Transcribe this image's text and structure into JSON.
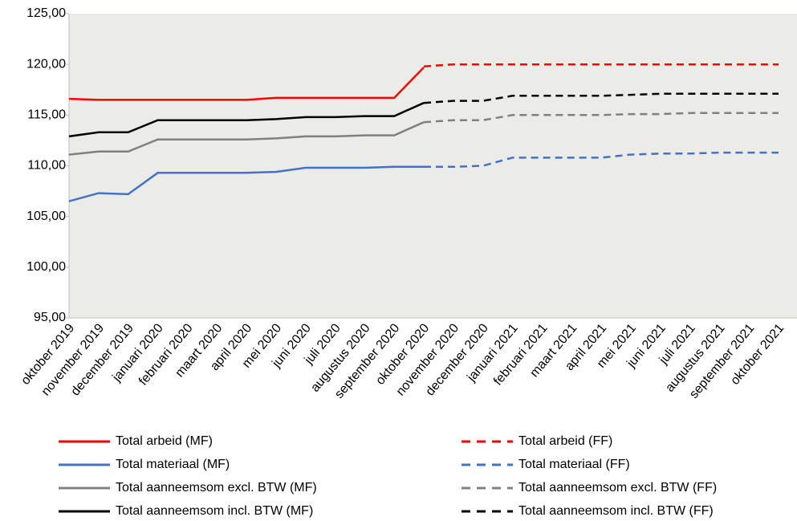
{
  "chart_data": {
    "type": "line",
    "categories": [
      "oktober 2019",
      "november 2019",
      "december 2019",
      "januari 2020",
      "februari 2020",
      "maart 2020",
      "april 2020",
      "mei 2020",
      "juni 2020",
      "juli 2020",
      "augustus 2020",
      "september 2020",
      "oktober 2020",
      "november 2020",
      "december 2020",
      "januari 2021",
      "februari 2021",
      "maart 2021",
      "april 2021",
      "mei 2021",
      "juni 2021",
      "juli 2021",
      "augustus 2021",
      "september 2021",
      "oktober 2021"
    ],
    "series": [
      {
        "name": "Total arbeid (MF)",
        "color": "#ff0000",
        "style": "solid",
        "values": [
          116.6,
          116.5,
          116.5,
          116.5,
          116.5,
          116.5,
          116.5,
          116.7,
          116.7,
          116.7,
          116.7,
          116.7,
          119.7,
          null,
          null,
          null,
          null,
          null,
          null,
          null,
          null,
          null,
          null,
          null,
          null
        ]
      },
      {
        "name": "Total arbeid (FF)",
        "color": "#ff0000",
        "style": "dashed",
        "values": [
          null,
          null,
          null,
          null,
          null,
          null,
          null,
          null,
          null,
          null,
          null,
          null,
          119.8,
          120.0,
          120.0,
          120.0,
          120.0,
          120.0,
          120.0,
          120.0,
          120.0,
          120.0,
          120.0,
          120.0,
          120.0
        ]
      },
      {
        "name": "Total materiaal (MF)",
        "color": "#4472c4",
        "style": "solid",
        "values": [
          106.5,
          107.3,
          107.2,
          109.3,
          109.3,
          109.3,
          109.3,
          109.4,
          109.8,
          109.8,
          109.8,
          109.9,
          109.9,
          null,
          null,
          null,
          null,
          null,
          null,
          null,
          null,
          null,
          null,
          null,
          null
        ]
      },
      {
        "name": "Total materiaal (FF)",
        "color": "#4472c4",
        "style": "dashed",
        "values": [
          null,
          null,
          null,
          null,
          null,
          null,
          null,
          null,
          null,
          null,
          null,
          null,
          109.9,
          109.9,
          110.0,
          110.8,
          110.8,
          110.8,
          110.8,
          111.1,
          111.2,
          111.2,
          111.3,
          111.3,
          111.3
        ]
      },
      {
        "name": "Total aanneemsom excl. BTW (MF)",
        "color": "#808080",
        "style": "solid",
        "values": [
          111.1,
          111.4,
          111.4,
          112.6,
          112.6,
          112.6,
          112.6,
          112.7,
          112.9,
          112.9,
          113.0,
          113.0,
          114.3,
          null,
          null,
          null,
          null,
          null,
          null,
          null,
          null,
          null,
          null,
          null,
          null
        ]
      },
      {
        "name": "Total aanneemsom excl. BTW (FF)",
        "color": "#808080",
        "style": "dashed",
        "values": [
          null,
          null,
          null,
          null,
          null,
          null,
          null,
          null,
          null,
          null,
          null,
          null,
          114.3,
          114.5,
          114.5,
          115.0,
          115.0,
          115.0,
          115.0,
          115.1,
          115.1,
          115.2,
          115.2,
          115.2,
          115.2
        ]
      },
      {
        "name": "Total aanneemsom incl. BTW (MF)",
        "color": "#000000",
        "style": "solid",
        "values": [
          112.9,
          113.3,
          113.3,
          114.5,
          114.5,
          114.5,
          114.5,
          114.6,
          114.8,
          114.8,
          114.9,
          114.9,
          116.2,
          null,
          null,
          null,
          null,
          null,
          null,
          null,
          null,
          null,
          null,
          null,
          null
        ]
      },
      {
        "name": "Total aanneemsom incl. BTW (FF)",
        "color": "#000000",
        "style": "dashed",
        "values": [
          null,
          null,
          null,
          null,
          null,
          null,
          null,
          null,
          null,
          null,
          null,
          null,
          116.2,
          116.4,
          116.4,
          116.9,
          116.9,
          116.9,
          116.9,
          117.0,
          117.1,
          117.1,
          117.1,
          117.1,
          117.1
        ]
      }
    ],
    "ylim": [
      95,
      125
    ],
    "yticks": [
      {
        "value": 95,
        "label": "95,00"
      },
      {
        "value": 100,
        "label": "100,00"
      },
      {
        "value": 105,
        "label": "105,00"
      },
      {
        "value": 110,
        "label": "110,00"
      },
      {
        "value": 115,
        "label": "115,00"
      },
      {
        "value": 120,
        "label": "120,00"
      },
      {
        "value": 125,
        "label": "125,00"
      }
    ],
    "legend": "bottom"
  }
}
